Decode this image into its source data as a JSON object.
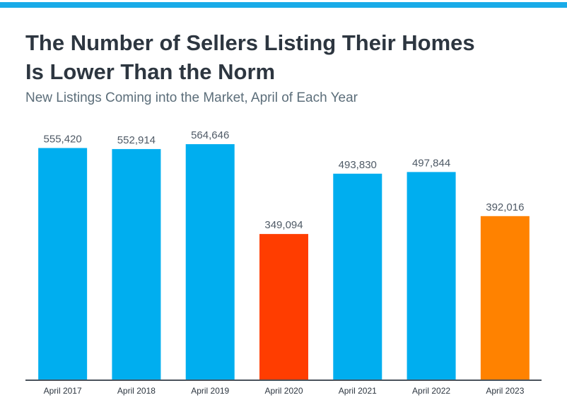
{
  "chart_data": {
    "type": "bar",
    "title": "The Number of Sellers Listing Their Homes Is Lower Than the Norm",
    "title_lines": [
      "The Number of Sellers Listing Their Homes",
      "Is Lower Than the Norm"
    ],
    "subtitle": "New Listings Coming into the Market, April of Each Year",
    "xlabel": "",
    "ylabel": "",
    "ylim": [
      0,
      564646
    ],
    "grid": false,
    "categories": [
      "April 2017",
      "April 2018",
      "April 2019",
      "April 2020",
      "April 2021",
      "April 2022",
      "April 2023"
    ],
    "values": [
      555420,
      552914,
      564646,
      349094,
      493830,
      497844,
      392016
    ],
    "value_labels": [
      "555,420",
      "552,914",
      "564,646",
      "349,094",
      "493,830",
      "497,844",
      "392,016"
    ],
    "colors": [
      "#00AEEF",
      "#00AEEF",
      "#00AEEF",
      "#FF3D00",
      "#00AEEF",
      "#00AEEF",
      "#FF8200"
    ]
  },
  "colors": {
    "accent": "#19ABE8",
    "title": "#2D3640",
    "subtitle": "#5C6E7A"
  }
}
